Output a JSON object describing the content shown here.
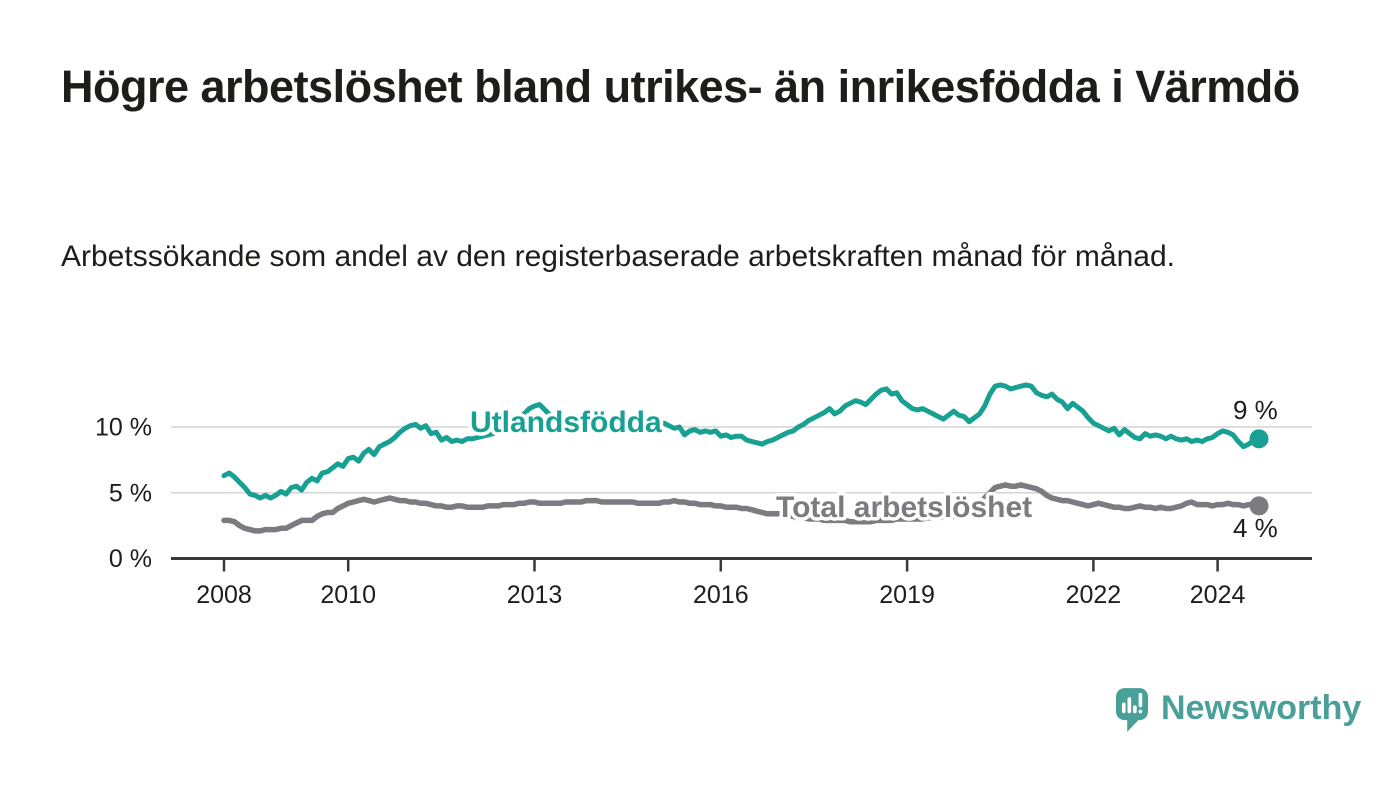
{
  "title": "Högre arbetslöshet bland utrikes- än inrikesfödda i Värmdö",
  "subtitle": "Arbetssökande som andel av den registerbaserade arbetskraften månad för månad.",
  "branding": {
    "logo_text": "Newsworthy",
    "logo_icon": "newsworthy-speech-bubble-bar-chart-icon"
  },
  "colors": {
    "foreign_born_line": "#18a193",
    "total_line": "#7b7b80",
    "text": "#1d1d1b",
    "grid": "#d4d4d4",
    "axis": "#39393b",
    "logo_teal": "#48a099",
    "background": "#ffffff"
  },
  "chart_data": {
    "type": "line",
    "title": "Högre arbetslöshet bland utrikes- än inrikesfödda i Värmdö",
    "subtitle": "Arbetssökande som andel av den registerbaserade arbetskraften månad för månad.",
    "x_unit": "month",
    "x_start": "2008-01",
    "x_end": "2024-09",
    "ylim": [
      0,
      14
    ],
    "grid": "horizontal",
    "legend_position": "on-line-labels",
    "y_ticks": [
      {
        "value": 0,
        "label": "0 %"
      },
      {
        "value": 5,
        "label": "5 %"
      },
      {
        "value": 10,
        "label": "10 %"
      }
    ],
    "x_ticks": [
      {
        "year": 2008,
        "label": "2008"
      },
      {
        "year": 2010,
        "label": "2010"
      },
      {
        "year": 2013,
        "label": "2013"
      },
      {
        "year": 2016,
        "label": "2016"
      },
      {
        "year": 2019,
        "label": "2019"
      },
      {
        "year": 2022,
        "label": "2022"
      },
      {
        "year": 2024,
        "label": "2024"
      }
    ],
    "series": [
      {
        "name": "Utlandsfödda",
        "color": "#18a193",
        "end_label": "9 %",
        "end_value": 9,
        "values": [
          6.3,
          6.5,
          6.2,
          5.8,
          5.4,
          4.9,
          4.8,
          4.6,
          4.8,
          4.6,
          4.8,
          5.1,
          4.9,
          5.4,
          5.5,
          5.2,
          5.8,
          6.1,
          5.9,
          6.5,
          6.6,
          6.9,
          7.2,
          7.0,
          7.6,
          7.7,
          7.4,
          8.0,
          8.3,
          7.9,
          8.5,
          8.7,
          8.9,
          9.2,
          9.6,
          9.9,
          10.1,
          10.2,
          9.9,
          10.1,
          9.5,
          9.6,
          9.0,
          9.2,
          8.9,
          9.0,
          8.9,
          9.1,
          9.1,
          9.2,
          9.3,
          9.4,
          9.5,
          9.6,
          9.8,
          10.0,
          10.3,
          10.6,
          11.0,
          11.4,
          11.6,
          11.7,
          11.3,
          10.9,
          10.6,
          10.3,
          10.1,
          9.9,
          9.9,
          9.8,
          9.9,
          9.9,
          10.0,
          9.9,
          9.9,
          9.8,
          9.8,
          9.9,
          9.9,
          10.0,
          10.0,
          10.1,
          10.1,
          10.2,
          10.2,
          10.3,
          10.1,
          9.9,
          10.0,
          9.4,
          9.7,
          9.8,
          9.6,
          9.7,
          9.6,
          9.7,
          9.3,
          9.4,
          9.2,
          9.3,
          9.3,
          9.0,
          8.9,
          8.8,
          8.7,
          8.9,
          9.0,
          9.2,
          9.4,
          9.6,
          9.7,
          10.0,
          10.2,
          10.5,
          10.7,
          10.9,
          11.1,
          11.4,
          11.0,
          11.2,
          11.6,
          11.8,
          12.0,
          11.9,
          11.7,
          12.1,
          12.5,
          12.8,
          12.9,
          12.5,
          12.6,
          12.0,
          11.7,
          11.4,
          11.3,
          11.4,
          11.2,
          11.0,
          10.8,
          10.6,
          10.9,
          11.2,
          10.9,
          10.8,
          10.4,
          10.7,
          11.0,
          11.6,
          12.5,
          13.1,
          13.2,
          13.1,
          12.9,
          13.0,
          13.1,
          13.2,
          13.1,
          12.6,
          12.4,
          12.3,
          12.5,
          12.1,
          11.9,
          11.4,
          11.8,
          11.5,
          11.2,
          10.7,
          10.3,
          10.1,
          9.9,
          9.7,
          9.9,
          9.4,
          9.8,
          9.5,
          9.2,
          9.1,
          9.5,
          9.3,
          9.4,
          9.3,
          9.1,
          9.3,
          9.1,
          9.0,
          9.1,
          8.9,
          9.0,
          8.9,
          9.1,
          9.2,
          9.5,
          9.7,
          9.6,
          9.4,
          8.9,
          8.5,
          8.7,
          9.0,
          9.1
        ]
      },
      {
        "name": "Total arbetslöshet",
        "color": "#7b7b80",
        "end_label": "4 %",
        "end_value": 4,
        "values": [
          2.9,
          2.9,
          2.8,
          2.5,
          2.3,
          2.2,
          2.1,
          2.1,
          2.2,
          2.2,
          2.2,
          2.3,
          2.3,
          2.5,
          2.7,
          2.9,
          2.9,
          2.9,
          3.2,
          3.4,
          3.5,
          3.5,
          3.8,
          4.0,
          4.2,
          4.3,
          4.4,
          4.5,
          4.4,
          4.3,
          4.4,
          4.5,
          4.6,
          4.5,
          4.4,
          4.4,
          4.3,
          4.3,
          4.2,
          4.2,
          4.1,
          4.0,
          4.0,
          3.9,
          3.9,
          4.0,
          4.0,
          3.9,
          3.9,
          3.9,
          3.9,
          4.0,
          4.0,
          4.0,
          4.1,
          4.1,
          4.1,
          4.2,
          4.2,
          4.3,
          4.3,
          4.2,
          4.2,
          4.2,
          4.2,
          4.2,
          4.3,
          4.3,
          4.3,
          4.3,
          4.4,
          4.4,
          4.4,
          4.3,
          4.3,
          4.3,
          4.3,
          4.3,
          4.3,
          4.3,
          4.2,
          4.2,
          4.2,
          4.2,
          4.2,
          4.3,
          4.3,
          4.4,
          4.3,
          4.3,
          4.2,
          4.2,
          4.1,
          4.1,
          4.1,
          4.0,
          4.0,
          3.9,
          3.9,
          3.9,
          3.8,
          3.8,
          3.7,
          3.6,
          3.5,
          3.4,
          3.4,
          3.4,
          3.4,
          3.3,
          3.2,
          3.1,
          3.1,
          3.0,
          3.0,
          3.0,
          2.9,
          2.9,
          2.9,
          2.9,
          2.9,
          2.8,
          2.8,
          2.8,
          2.8,
          2.8,
          2.9,
          2.9,
          2.9,
          2.9,
          3.0,
          3.0,
          3.0,
          3.0,
          3.0,
          3.0,
          3.1,
          3.1,
          3.1,
          3.2,
          3.2,
          3.2,
          3.3,
          3.3,
          3.4,
          3.5,
          4.0,
          4.6,
          5.0,
          5.4,
          5.5,
          5.6,
          5.5,
          5.5,
          5.6,
          5.5,
          5.4,
          5.3,
          5.1,
          4.8,
          4.6,
          4.5,
          4.4,
          4.4,
          4.3,
          4.2,
          4.1,
          4.0,
          4.1,
          4.2,
          4.1,
          4.0,
          3.9,
          3.9,
          3.8,
          3.8,
          3.9,
          4.0,
          3.9,
          3.9,
          3.8,
          3.9,
          3.8,
          3.8,
          3.9,
          4.0,
          4.2,
          4.3,
          4.1,
          4.1,
          4.1,
          4.0,
          4.1,
          4.1,
          4.2,
          4.1,
          4.1,
          4.0,
          4.1,
          4.1,
          4.0
        ]
      }
    ]
  }
}
